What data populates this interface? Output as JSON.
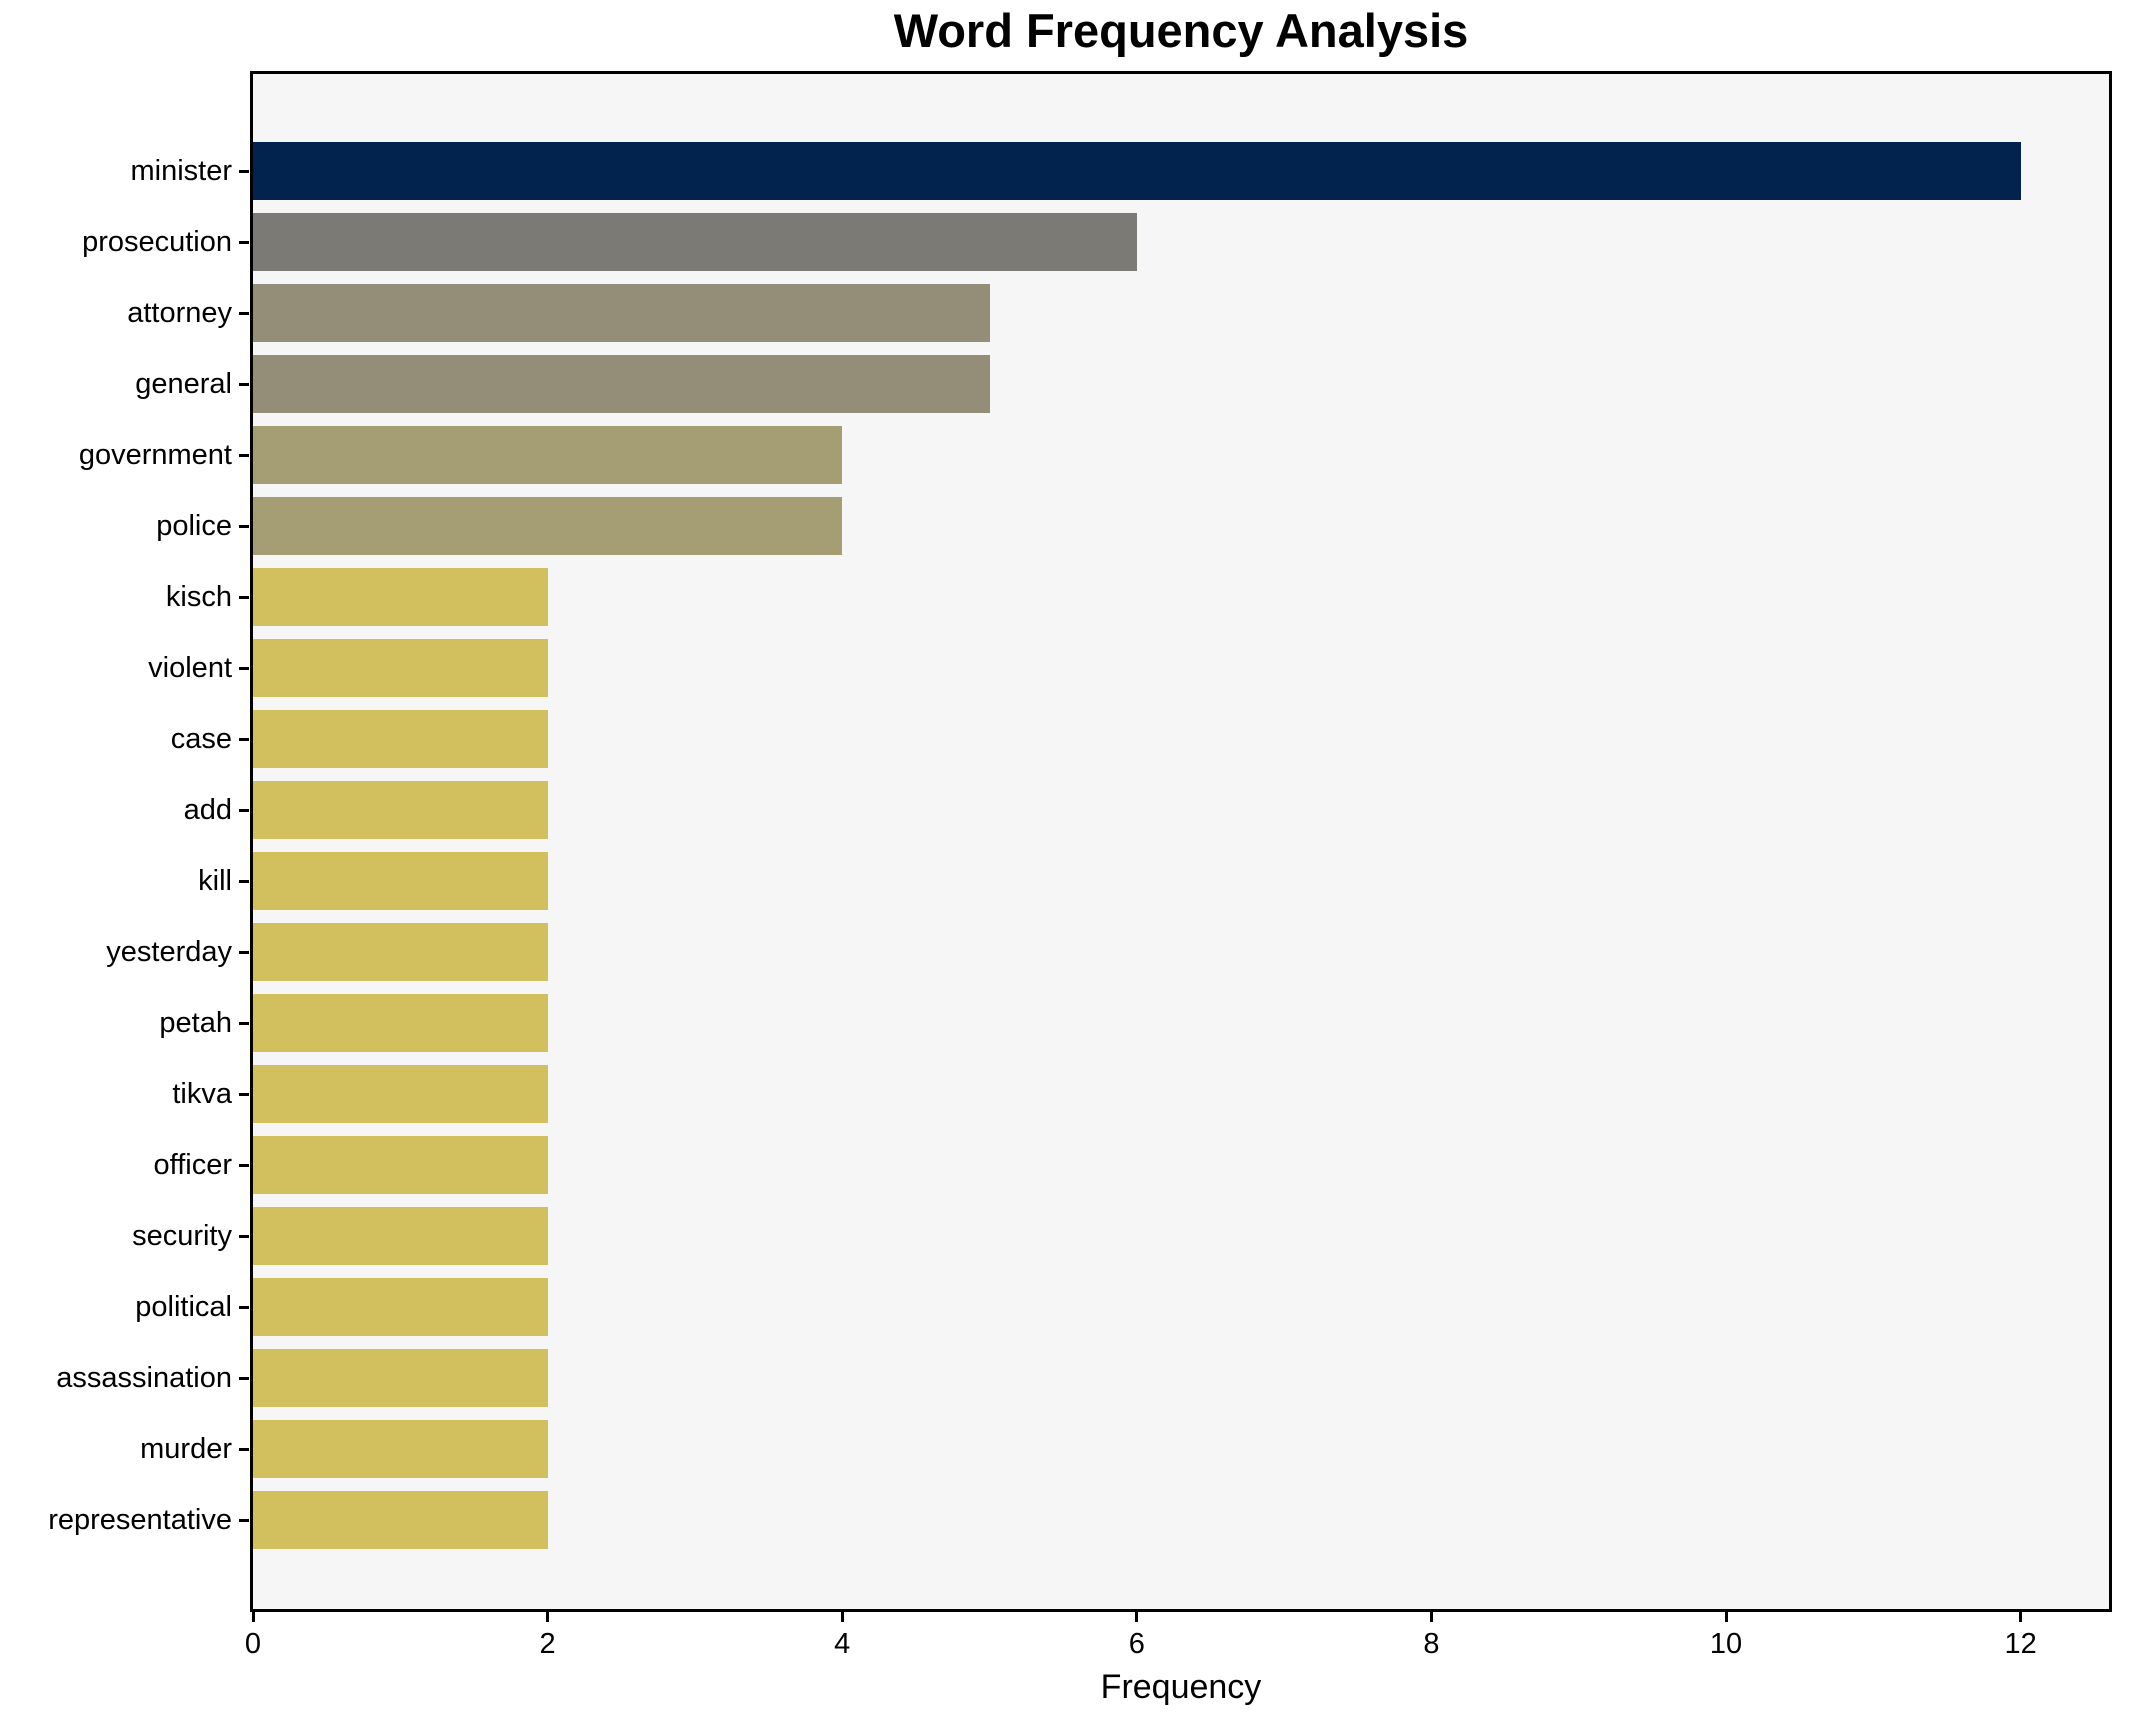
{
  "figure": {
    "background": "#ffffff",
    "plot_background": "#f6f6f7",
    "spine_color": "#000000",
    "text_color": "#000000"
  },
  "chart_data": {
    "type": "bar",
    "orientation": "horizontal",
    "title": "Word Frequency Analysis",
    "xlabel": "Frequency",
    "ylabel": "",
    "xlim": [
      0,
      12.6
    ],
    "x_ticks": [
      0,
      2,
      4,
      6,
      8,
      10,
      12
    ],
    "grid": false,
    "legend": null,
    "categories": [
      "minister",
      "prosecution",
      "attorney",
      "general",
      "government",
      "police",
      "kisch",
      "violent",
      "case",
      "add",
      "kill",
      "yesterday",
      "petah",
      "tikva",
      "officer",
      "security",
      "political",
      "assassination",
      "murder",
      "representative"
    ],
    "values": [
      12,
      6,
      5,
      5,
      4,
      4,
      2,
      2,
      2,
      2,
      2,
      2,
      2,
      2,
      2,
      2,
      2,
      2,
      2,
      2
    ],
    "bar_colors": [
      "#02234e",
      "#7b7a75",
      "#948d77",
      "#948d77",
      "#a59d73",
      "#a59d73",
      "#d2c05f",
      "#d2c05f",
      "#d2c05f",
      "#d2c05f",
      "#d2c05f",
      "#d2c05f",
      "#d2c05f",
      "#d2c05f",
      "#d2c05f",
      "#d2c05f",
      "#d2c05f",
      "#d2c05f",
      "#d2c05f",
      "#d2c05f"
    ]
  }
}
